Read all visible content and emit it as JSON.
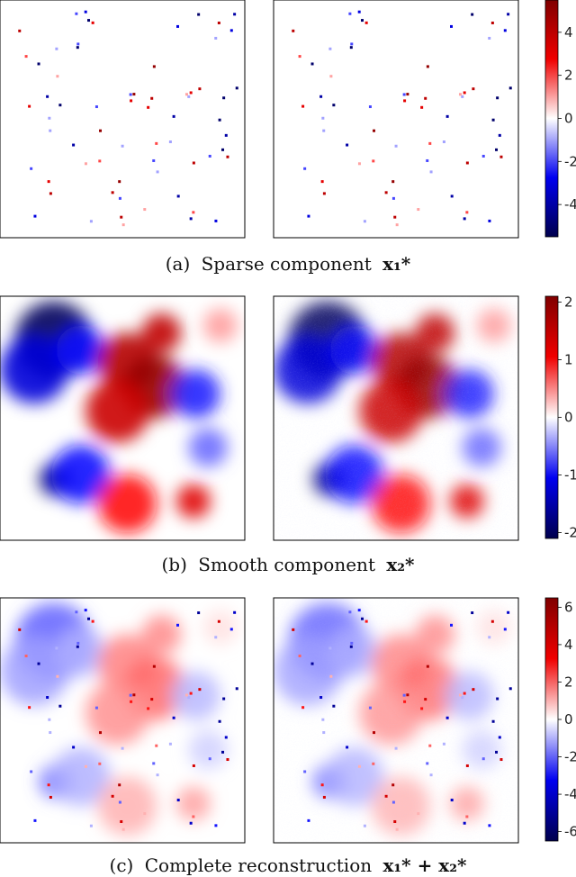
{
  "figure": {
    "rows": [
      {
        "caption_prefix": "(a)",
        "caption_text": "Sparse component",
        "caption_math": "x₁*",
        "colorbar_ticks": [
          "4",
          "2",
          "0",
          "-2",
          "-4"
        ],
        "colorbar_range": [
          -5.5,
          5.5
        ]
      },
      {
        "caption_prefix": "(b)",
        "caption_text": "Smooth component",
        "caption_math": "x₂*",
        "colorbar_ticks": [
          "2",
          "1",
          "0",
          "-1",
          "-2"
        ],
        "colorbar_range": [
          -2.1,
          2.1
        ]
      },
      {
        "caption_prefix": "(c)",
        "caption_text": "Complete reconstruction",
        "caption_math": "x₁* + x₂*",
        "colorbar_ticks": [
          "6",
          "4",
          "2",
          "0",
          "-2",
          "-4",
          "-6"
        ],
        "colorbar_range": [
          -6.5,
          6.5
        ]
      }
    ]
  },
  "chart_data": [
    {
      "type": "heatmap",
      "title": "",
      "caption": "(a) Sparse component x1*",
      "panels": [
        "left",
        "right"
      ],
      "colormap": "seismic",
      "colorbar_ticks": [
        4,
        2,
        0,
        -2,
        -4
      ],
      "vmin": -5.5,
      "vmax": 5.5,
      "grid": false,
      "sparse_points_sample": [
        {
          "x": 0.08,
          "y": 0.13,
          "v": 4
        },
        {
          "x": 0.35,
          "y": 0.05,
          "v": -3
        },
        {
          "x": 0.63,
          "y": 0.28,
          "v": 5
        },
        {
          "x": 0.78,
          "y": 0.39,
          "v": 3
        },
        {
          "x": 0.71,
          "y": 0.49,
          "v": -4
        },
        {
          "x": 0.41,
          "y": 0.55,
          "v": 5
        },
        {
          "x": 0.3,
          "y": 0.61,
          "v": -4
        },
        {
          "x": 0.91,
          "y": 0.63,
          "v": -5
        },
        {
          "x": 0.93,
          "y": 0.66,
          "v": 4
        },
        {
          "x": 0.46,
          "y": 0.81,
          "v": 4
        },
        {
          "x": 0.78,
          "y": 0.92,
          "v": -4
        }
      ]
    },
    {
      "type": "heatmap",
      "title": "",
      "caption": "(b) Smooth component x2*",
      "panels": [
        "left",
        "right"
      ],
      "colormap": "seismic",
      "colorbar_ticks": [
        2,
        1,
        0,
        -1,
        -2
      ],
      "vmin": -2.1,
      "vmax": 2.1,
      "grid": false,
      "blobs": [
        {
          "x": 0.22,
          "y": 0.18,
          "v": -2.0,
          "r": 0.16
        },
        {
          "x": 0.14,
          "y": 0.3,
          "v": -1.2,
          "r": 0.14
        },
        {
          "x": 0.33,
          "y": 0.22,
          "v": -1.0,
          "r": 0.1
        },
        {
          "x": 0.52,
          "y": 0.27,
          "v": 1.6,
          "r": 0.12
        },
        {
          "x": 0.63,
          "y": 0.37,
          "v": 1.9,
          "r": 0.13
        },
        {
          "x": 0.48,
          "y": 0.47,
          "v": 1.4,
          "r": 0.13
        },
        {
          "x": 0.66,
          "y": 0.15,
          "v": 1.5,
          "r": 0.08
        },
        {
          "x": 0.8,
          "y": 0.4,
          "v": -0.9,
          "r": 0.1
        },
        {
          "x": 0.23,
          "y": 0.75,
          "v": -1.9,
          "r": 0.07
        },
        {
          "x": 0.33,
          "y": 0.73,
          "v": -1.0,
          "r": 0.12
        },
        {
          "x": 0.85,
          "y": 0.62,
          "v": -0.6,
          "r": 0.08
        },
        {
          "x": 0.52,
          "y": 0.85,
          "v": 1.0,
          "r": 0.12
        },
        {
          "x": 0.79,
          "y": 0.84,
          "v": 1.2,
          "r": 0.07
        },
        {
          "x": 0.9,
          "y": 0.12,
          "v": 0.4,
          "r": 0.07
        }
      ]
    },
    {
      "type": "heatmap",
      "title": "",
      "caption": "(c) Complete reconstruction x1* + x2*",
      "panels": [
        "left",
        "right"
      ],
      "colormap": "seismic",
      "colorbar_ticks": [
        6,
        4,
        2,
        0,
        -2,
        -4,
        -6
      ],
      "vmin": -6.5,
      "vmax": 6.5,
      "grid": false
    }
  ]
}
